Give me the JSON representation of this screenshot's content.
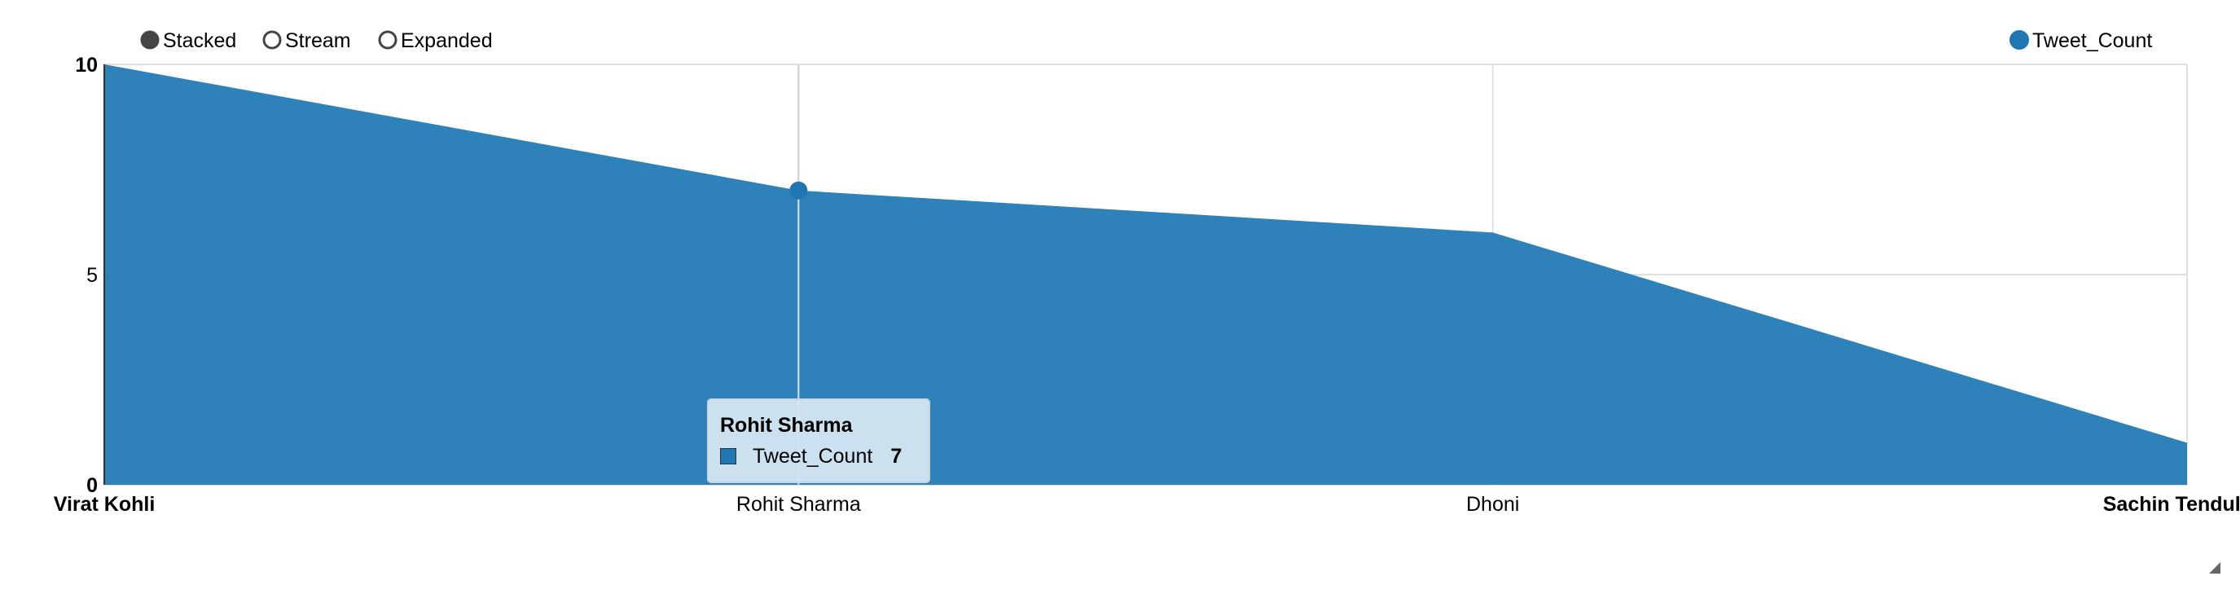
{
  "controls": {
    "options": [
      {
        "label": "Stacked",
        "selected": true
      },
      {
        "label": "Stream",
        "selected": false
      },
      {
        "label": "Expanded",
        "selected": false
      }
    ]
  },
  "legend": {
    "items": [
      {
        "label": "Tweet_Count",
        "color": "#1f77b4"
      }
    ]
  },
  "tooltip": {
    "title": "Rohit Sharma",
    "series": "Tweet_Count",
    "value": "7",
    "color": "#1f77b4"
  },
  "chart_data": {
    "type": "area",
    "categories": [
      "Virat Kohli",
      "Rohit Sharma",
      "Dhoni",
      "Sachin Tendulkar"
    ],
    "series": [
      {
        "name": "Tweet_Count",
        "values": [
          10,
          7,
          6,
          1
        ],
        "color": "#1f77b4"
      }
    ],
    "ylim": [
      0,
      10
    ],
    "yticks": [
      0,
      5,
      10
    ],
    "highlighted_category": "Rohit Sharma",
    "grid": true,
    "legend_position": "top-right"
  }
}
